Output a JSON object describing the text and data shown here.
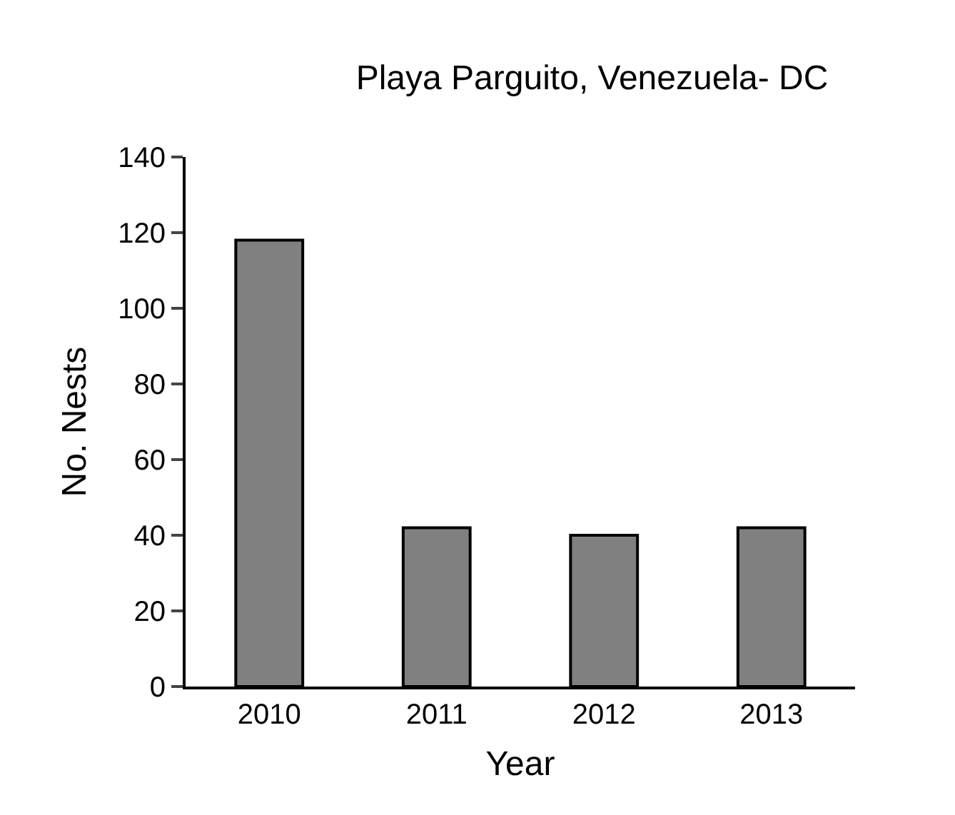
{
  "chart_data": {
    "type": "bar",
    "title": "Playa Parguito, Venezuela- DC",
    "xlabel": "Year",
    "ylabel": "No. Nests",
    "categories": [
      "2010",
      "2011",
      "2012",
      "2013"
    ],
    "values": [
      118,
      42,
      40,
      42
    ],
    "color": "#808080",
    "ylim": [
      0,
      140
    ],
    "yticks": [
      0,
      20,
      40,
      60,
      80,
      100,
      120,
      140
    ],
    "legend": false
  }
}
